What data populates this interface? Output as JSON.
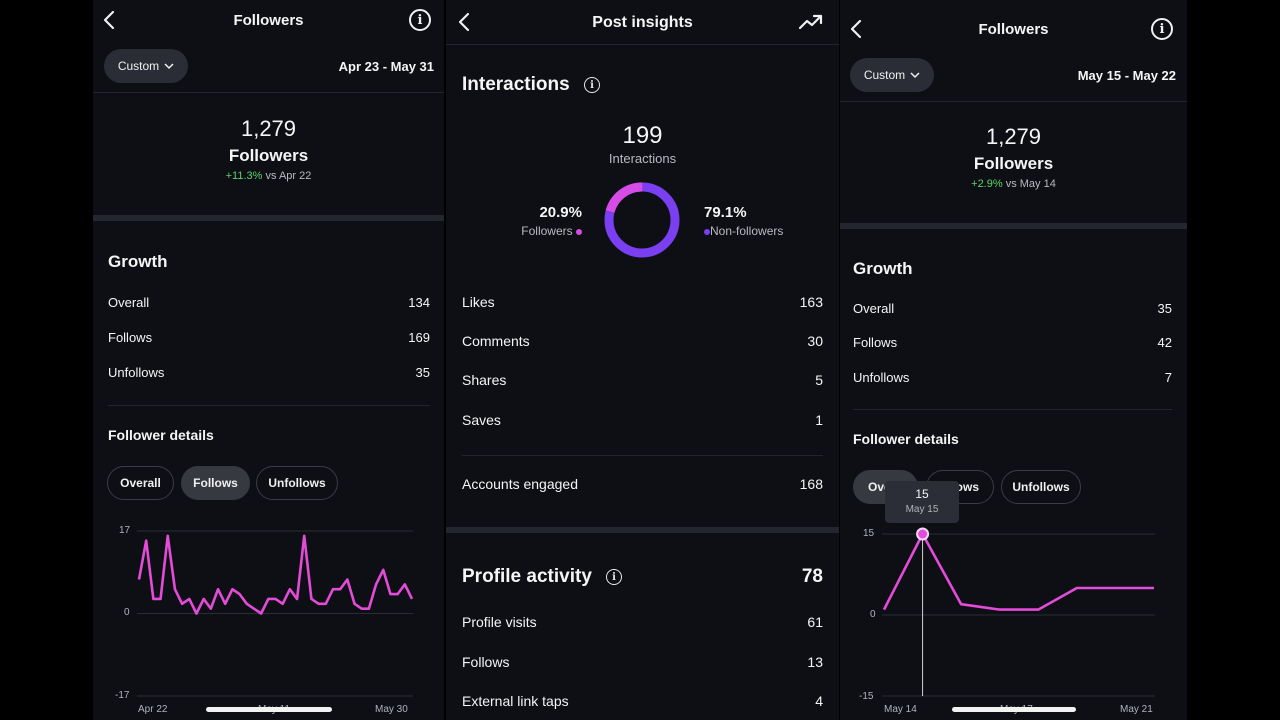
{
  "left": {
    "title": "Followers",
    "filter_label": "Custom",
    "date_range": "Apr 23 - May 31",
    "total": "1,279",
    "total_label": "Followers",
    "change_pct": "+11.3%",
    "change_ref": "vs Apr 22",
    "growth_title": "Growth",
    "growth": [
      {
        "label": "Overall",
        "value": "134"
      },
      {
        "label": "Follows",
        "value": "169"
      },
      {
        "label": "Unfollows",
        "value": "35"
      }
    ],
    "details_title": "Follower details",
    "tabs": [
      {
        "label": "Overall",
        "active": false
      },
      {
        "label": "Follows",
        "active": true
      },
      {
        "label": "Unfollows",
        "active": false
      }
    ],
    "chart_data": {
      "type": "line",
      "ylim": [
        -17,
        17
      ],
      "yticks": [
        "17",
        "0",
        "-17"
      ],
      "xticks": [
        "Apr 22",
        "May 11",
        "May 30"
      ],
      "color": "#e44bd9",
      "values": [
        7,
        15,
        3,
        3,
        16,
        5,
        2,
        3,
        0,
        3,
        1,
        5,
        2,
        5,
        4,
        2,
        1,
        0,
        3,
        3,
        2,
        5,
        3,
        16,
        3,
        2,
        2,
        5,
        5,
        7,
        2,
        1,
        1,
        6,
        9,
        4,
        4,
        6,
        3
      ]
    }
  },
  "middle": {
    "title": "Post insights",
    "interactions_title": "Interactions",
    "interactions_total": "199",
    "interactions_label": "Interactions",
    "followers_pct": "20.9%",
    "followers_label": "Followers",
    "nonfollowers_pct": "79.1%",
    "nonfollowers_label": "Non-followers",
    "followers_color": "#d84ce6",
    "nonfollowers_color": "#7a3ff0",
    "donut_fraction_followers": 0.209,
    "metrics": [
      {
        "label": "Likes",
        "value": "163"
      },
      {
        "label": "Comments",
        "value": "30"
      },
      {
        "label": "Shares",
        "value": "5"
      },
      {
        "label": "Saves",
        "value": "1"
      }
    ],
    "accounts_engaged_label": "Accounts engaged",
    "accounts_engaged_value": "168",
    "profile_title": "Profile activity",
    "profile_total": "78",
    "profile": [
      {
        "label": "Profile visits",
        "value": "61"
      },
      {
        "label": "Follows",
        "value": "13"
      },
      {
        "label": "External link taps",
        "value": "4"
      }
    ]
  },
  "right": {
    "title": "Followers",
    "filter_label": "Custom",
    "date_range": "May 15 - May 22",
    "total": "1,279",
    "total_label": "Followers",
    "change_pct": "+2.9%",
    "change_ref": "vs May 14",
    "growth_title": "Growth",
    "growth": [
      {
        "label": "Overall",
        "value": "35"
      },
      {
        "label": "Follows",
        "value": "42"
      },
      {
        "label": "Unfollows",
        "value": "7"
      }
    ],
    "details_title": "Follower details",
    "tabs": [
      {
        "label": "Ove",
        "active": true
      },
      {
        "label": "ows",
        "active": false
      },
      {
        "label": "Unfollows",
        "active": false
      }
    ],
    "tooltip_value": "15",
    "tooltip_date": "May 15",
    "chart_data": {
      "type": "line",
      "ylim": [
        -15,
        15
      ],
      "yticks": [
        "15",
        "0",
        "-15"
      ],
      "xticks": [
        "May 14",
        "May 17",
        "May 21"
      ],
      "color": "#e44bd9",
      "values": [
        1,
        15,
        2,
        1,
        1,
        5,
        5,
        5
      ]
    }
  }
}
